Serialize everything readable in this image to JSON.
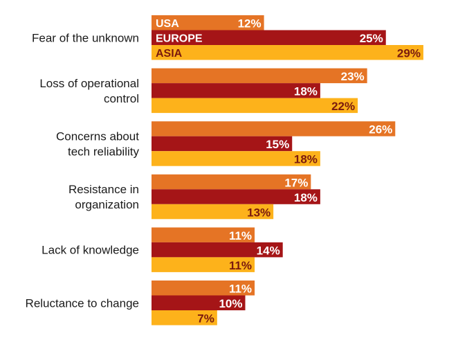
{
  "chart_data": {
    "type": "bar",
    "orientation": "horizontal",
    "title": "",
    "xlabel": "",
    "ylabel": "",
    "xlim": [
      0,
      29
    ],
    "grid": false,
    "legend": "inline-first-group",
    "categories": [
      [
        "Fear of the unknown"
      ],
      [
        "Loss of operational",
        "control"
      ],
      [
        "Concerns about",
        "tech reliability"
      ],
      [
        "Resistance in",
        "organization"
      ],
      [
        "Lack of knowledge"
      ],
      [
        "Reluctance to change"
      ]
    ],
    "series": [
      {
        "name": "USA",
        "color": "#E57425",
        "label_color": "#ffffff",
        "values": [
          12,
          23,
          26,
          17,
          11,
          11
        ]
      },
      {
        "name": "EUROPE",
        "color": "#A51517",
        "label_color": "#ffffff",
        "values": [
          25,
          18,
          15,
          18,
          14,
          10
        ]
      },
      {
        "name": "ASIA",
        "color": "#FDB21B",
        "label_color": "#7A1A0E",
        "values": [
          29,
          22,
          18,
          13,
          11,
          7
        ]
      }
    ],
    "value_suffix": "%"
  }
}
